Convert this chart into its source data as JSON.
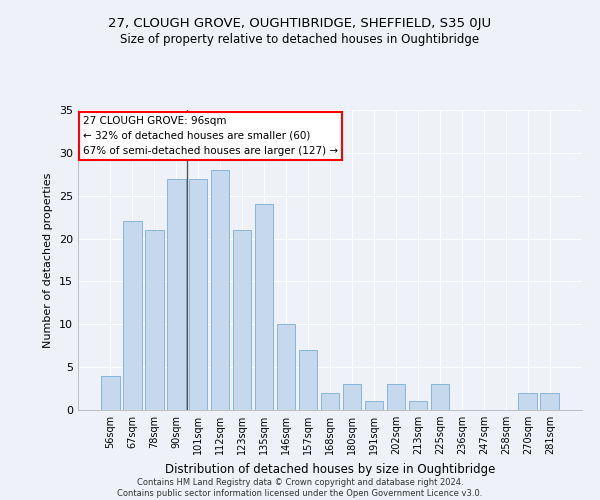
{
  "title": "27, CLOUGH GROVE, OUGHTIBRIDGE, SHEFFIELD, S35 0JU",
  "subtitle": "Size of property relative to detached houses in Oughtibridge",
  "xlabel": "Distribution of detached houses by size in Oughtibridge",
  "ylabel": "Number of detached properties",
  "bar_color": "#c5d8ed",
  "bar_edge_color": "#7bafd4",
  "categories": [
    "56sqm",
    "67sqm",
    "78sqm",
    "90sqm",
    "101sqm",
    "112sqm",
    "123sqm",
    "135sqm",
    "146sqm",
    "157sqm",
    "168sqm",
    "180sqm",
    "191sqm",
    "202sqm",
    "213sqm",
    "225sqm",
    "236sqm",
    "247sqm",
    "258sqm",
    "270sqm",
    "281sqm"
  ],
  "values": [
    4,
    22,
    21,
    27,
    27,
    28,
    21,
    24,
    10,
    7,
    2,
    3,
    1,
    3,
    1,
    3,
    0,
    0,
    0,
    2,
    2
  ],
  "ylim": [
    0,
    35
  ],
  "yticks": [
    0,
    5,
    10,
    15,
    20,
    25,
    30,
    35
  ],
  "annotation_line1": "27 CLOUGH GROVE: 96sqm",
  "annotation_line2": "← 32% of detached houses are smaller (60)",
  "annotation_line3": "67% of semi-detached houses are larger (127) →",
  "footer_text": "Contains HM Land Registry data © Crown copyright and database right 2024.\nContains public sector information licensed under the Open Government Licence v3.0.",
  "background_color": "#eef2f8",
  "plot_background_color": "#eef2f8",
  "grid_color": "#ffffff",
  "vline_color": "#555555",
  "vline_x_index": 3.5
}
